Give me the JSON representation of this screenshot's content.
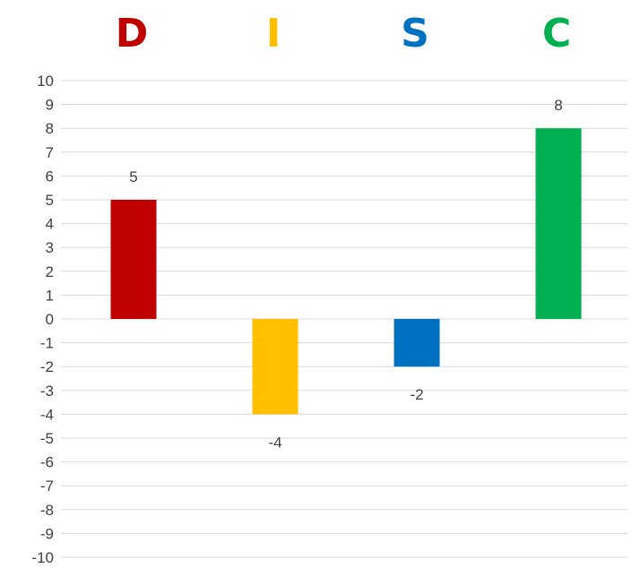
{
  "chart_data": {
    "type": "bar",
    "categories": [
      "D",
      "I",
      "S",
      "C"
    ],
    "values": [
      5,
      -4,
      -2,
      8
    ],
    "colors": [
      "#c00000",
      "#ffc000",
      "#0070c0",
      "#00b050"
    ],
    "ylim": [
      -10,
      10
    ],
    "yticks": [
      "10",
      "9",
      "8",
      "7",
      "6",
      "5",
      "4",
      "3",
      "2",
      "1",
      "0",
      "-1",
      "-2",
      "-3",
      "-4",
      "-5",
      "-6",
      "-7",
      "-8",
      "-9",
      "-10"
    ],
    "data_labels": [
      "5",
      "-4",
      "-2",
      "8"
    ],
    "grid": true,
    "legend": "none",
    "category_label_position": "top"
  }
}
